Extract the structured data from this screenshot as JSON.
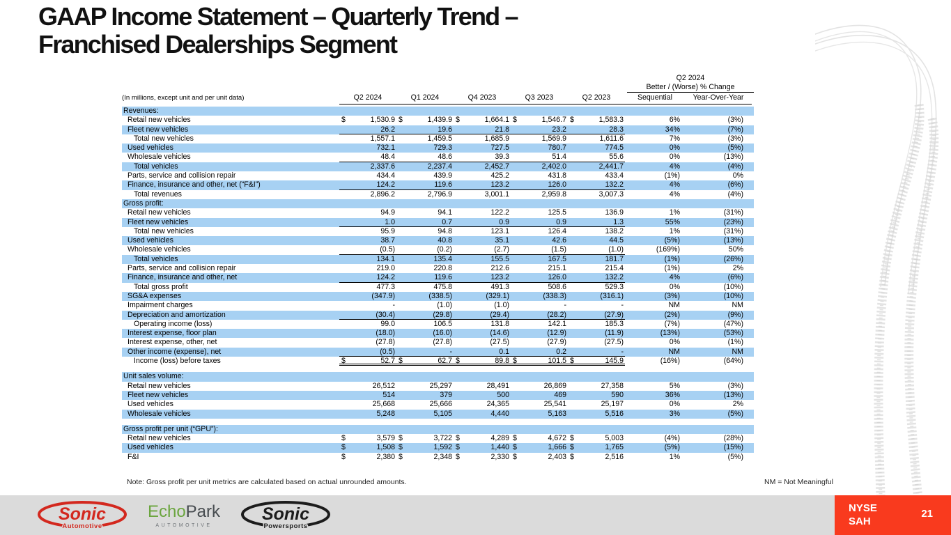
{
  "slide": {
    "title_line1": "GAAP Income Statement – Quarterly Trend –",
    "title_line2": "Franchised Dealerships Segment",
    "note": "Note: Gross profit per unit metrics are calculated based on actual unrounded amounts.",
    "nm_note": "NM = Not Meaningful",
    "page_number": "21",
    "ticker_line1": "NYSE",
    "ticker_line2": "SAH"
  },
  "colors": {
    "row_highlight": "#A7D1F3",
    "badge_red": "#F93A1E",
    "bottom_bar_gray": "#DBDBDB",
    "sonic_red": "#D3281E",
    "echopark_green": "#6BA53F",
    "echopark_gray": "#474C50",
    "powersports_black": "#1C1C1C"
  },
  "logos": {
    "sonic_automotive": {
      "name": "Sonic",
      "sub": "Automotive"
    },
    "echopark": {
      "name_part1": "Echo",
      "name_part2": "Park",
      "sub": "AUTOMOTIVE"
    },
    "sonic_powersports": {
      "name": "Sonic",
      "sub": "Powersports"
    }
  },
  "table": {
    "units_label": "(In millions, except unit and per unit data)",
    "change_header_line1": "Q2 2024",
    "change_header_line2": "Better / (Worse) % Change",
    "quarter_columns": [
      "Q2 2024",
      "Q1 2024",
      "Q4 2023",
      "Q3 2023",
      "Q2 2023"
    ],
    "change_columns": [
      "Sequential",
      "Year-Over-Year"
    ],
    "sections": [
      {
        "header": "Revenues:",
        "gap_before": false,
        "rows": [
          {
            "label": "Retail new vehicles",
            "dollar": true,
            "indent": 1,
            "values": [
              "1,530.9",
              "1,439.9",
              "1,664.1",
              "1,546.7",
              "1,583.3"
            ],
            "seq": "6%",
            "yoy": "(3%)"
          },
          {
            "label": "Fleet new vehicles",
            "indent": 1,
            "ul": true,
            "values": [
              "26.2",
              "19.6",
              "21.8",
              "23.2",
              "28.3"
            ],
            "seq": "34%",
            "yoy": "(7%)"
          },
          {
            "label": "Total new vehicles",
            "indent": 2,
            "values": [
              "1,557.1",
              "1,459.5",
              "1,685.9",
              "1,569.9",
              "1,611.6"
            ],
            "seq": "7%",
            "yoy": "(3%)"
          },
          {
            "label": "Used vehicles",
            "indent": 1,
            "values": [
              "732.1",
              "729.3",
              "727.5",
              "780.7",
              "774.5"
            ],
            "seq": "0%",
            "yoy": "(5%)"
          },
          {
            "label": "Wholesale vehicles",
            "indent": 1,
            "ul": true,
            "values": [
              "48.4",
              "48.6",
              "39.3",
              "51.4",
              "55.6"
            ],
            "seq": "0%",
            "yoy": "(13%)"
          },
          {
            "label": "Total vehicles",
            "indent": 2,
            "values": [
              "2,337.6",
              "2,237.4",
              "2,452.7",
              "2,402.0",
              "2,441.7"
            ],
            "seq": "4%",
            "yoy": "(4%)"
          },
          {
            "label": "Parts, service and collision repair",
            "indent": 1,
            "values": [
              "434.4",
              "439.9",
              "425.2",
              "431.8",
              "433.4"
            ],
            "seq": "(1%)",
            "yoy": "0%"
          },
          {
            "label": "Finance, insurance and other, net (“F&I”)",
            "indent": 1,
            "ul": true,
            "values": [
              "124.2",
              "119.6",
              "123.2",
              "126.0",
              "132.2"
            ],
            "seq": "4%",
            "yoy": "(6%)"
          },
          {
            "label": "Total revenues",
            "indent": 2,
            "values": [
              "2,896.2",
              "2,796.9",
              "3,001.1",
              "2,959.8",
              "3,007.3"
            ],
            "seq": "4%",
            "yoy": "(4%)"
          }
        ]
      },
      {
        "header": "Gross profit:",
        "gap_before": false,
        "rows": [
          {
            "label": "Retail new vehicles",
            "indent": 1,
            "values": [
              "94.9",
              "94.1",
              "122.2",
              "125.5",
              "136.9"
            ],
            "seq": "1%",
            "yoy": "(31%)"
          },
          {
            "label": "Fleet new vehicles",
            "indent": 1,
            "ul": true,
            "values": [
              "1.0",
              "0.7",
              "0.9",
              "0.9",
              "1.3"
            ],
            "seq": "55%",
            "yoy": "(23%)"
          },
          {
            "label": "Total new vehicles",
            "indent": 2,
            "values": [
              "95.9",
              "94.8",
              "123.1",
              "126.4",
              "138.2"
            ],
            "seq": "1%",
            "yoy": "(31%)"
          },
          {
            "label": "Used vehicles",
            "indent": 1,
            "values": [
              "38.7",
              "40.8",
              "35.1",
              "42.6",
              "44.5"
            ],
            "seq": "(5%)",
            "yoy": "(13%)"
          },
          {
            "label": "Wholesale vehicles",
            "indent": 1,
            "ul": true,
            "values": [
              "(0.5)",
              "(0.2)",
              "(2.7)",
              "(1.5)",
              "(1.0)"
            ],
            "seq": "(169%)",
            "yoy": "50%"
          },
          {
            "label": "Total vehicles",
            "indent": 2,
            "values": [
              "134.1",
              "135.4",
              "155.5",
              "167.5",
              "181.7"
            ],
            "seq": "(1%)",
            "yoy": "(26%)"
          },
          {
            "label": "Parts, service and collision repair",
            "indent": 1,
            "values": [
              "219.0",
              "220.8",
              "212.6",
              "215.1",
              "215.4"
            ],
            "seq": "(1%)",
            "yoy": "2%"
          },
          {
            "label": "Finance, insurance and other, net",
            "indent": 1,
            "ul": true,
            "values": [
              "124.2",
              "119.6",
              "123.2",
              "126.0",
              "132.2"
            ],
            "seq": "4%",
            "yoy": "(6%)"
          },
          {
            "label": "Total gross profit",
            "indent": 2,
            "values": [
              "477.3",
              "475.8",
              "491.3",
              "508.6",
              "529.3"
            ],
            "seq": "0%",
            "yoy": "(10%)"
          },
          {
            "label": "SG&A expenses",
            "indent": 1,
            "values": [
              "(347.9)",
              "(338.5)",
              "(329.1)",
              "(338.3)",
              "(316.1)"
            ],
            "seq": "(3%)",
            "yoy": "(10%)"
          },
          {
            "label": "Impairment charges",
            "indent": 1,
            "values": [
              "-",
              "(1.0)",
              "(1.0)",
              "-",
              "-"
            ],
            "seq": "NM",
            "yoy": "NM"
          },
          {
            "label": "Depreciation and amortization",
            "indent": 1,
            "ul": true,
            "values": [
              "(30.4)",
              "(29.8)",
              "(29.4)",
              "(28.2)",
              "(27.9)"
            ],
            "seq": "(2%)",
            "yoy": "(9%)"
          },
          {
            "label": "Operating income (loss)",
            "indent": 2,
            "values": [
              "99.0",
              "106.5",
              "131.8",
              "142.1",
              "185.3"
            ],
            "seq": "(7%)",
            "yoy": "(47%)"
          },
          {
            "label": "Interest expense, floor plan",
            "indent": 1,
            "values": [
              "(18.0)",
              "(16.0)",
              "(14.6)",
              "(12.9)",
              "(11.9)"
            ],
            "seq": "(13%)",
            "yoy": "(53%)"
          },
          {
            "label": "Interest expense, other, net",
            "indent": 1,
            "values": [
              "(27.8)",
              "(27.8)",
              "(27.5)",
              "(27.9)",
              "(27.5)"
            ],
            "seq": "0%",
            "yoy": "(1%)"
          },
          {
            "label": "Other income (expense), net",
            "indent": 1,
            "ul": true,
            "values": [
              "(0.5)",
              "-",
              "0.1",
              "0.2",
              "-"
            ],
            "seq": "NM",
            "yoy": "NM"
          },
          {
            "label": "Income (loss) before taxes",
            "indent": 2,
            "dollar": true,
            "dul": true,
            "values": [
              "52.7",
              "62.7",
              "89.8",
              "101.5",
              "145.9"
            ],
            "seq": "(16%)",
            "yoy": "(64%)"
          }
        ]
      },
      {
        "header": "Unit sales volume:",
        "gap_before": true,
        "rows": [
          {
            "label": "Retail new vehicles",
            "indent": 1,
            "values": [
              "26,512",
              "25,297",
              "28,491",
              "26,869",
              "27,358"
            ],
            "seq": "5%",
            "yoy": "(3%)"
          },
          {
            "label": "Fleet new vehicles",
            "indent": 1,
            "values": [
              "514",
              "379",
              "500",
              "469",
              "590"
            ],
            "seq": "36%",
            "yoy": "(13%)"
          },
          {
            "label": "Used vehicles",
            "indent": 1,
            "values": [
              "25,668",
              "25,666",
              "24,365",
              "25,541",
              "25,197"
            ],
            "seq": "0%",
            "yoy": "2%"
          },
          {
            "label": "Wholesale vehicles",
            "indent": 1,
            "values": [
              "5,248",
              "5,105",
              "4,440",
              "5,163",
              "5,516"
            ],
            "seq": "3%",
            "yoy": "(5%)"
          }
        ]
      },
      {
        "header": "Gross profit per unit (“GPU”):",
        "gap_before": true,
        "rows": [
          {
            "label": "Retail new vehicles",
            "indent": 1,
            "dollar": true,
            "values": [
              "3,579",
              "3,722",
              "4,289",
              "4,672",
              "5,003"
            ],
            "seq": "(4%)",
            "yoy": "(28%)"
          },
          {
            "label": "Used vehicles",
            "indent": 1,
            "dollar": true,
            "values": [
              "1,508",
              "1,592",
              "1,440",
              "1,666",
              "1,765"
            ],
            "seq": "(5%)",
            "yoy": "(15%)"
          },
          {
            "label": "F&I",
            "indent": 1,
            "dollar": true,
            "values": [
              "2,380",
              "2,348",
              "2,330",
              "2,403",
              "2,516"
            ],
            "seq": "1%",
            "yoy": "(5%)"
          }
        ]
      }
    ]
  }
}
